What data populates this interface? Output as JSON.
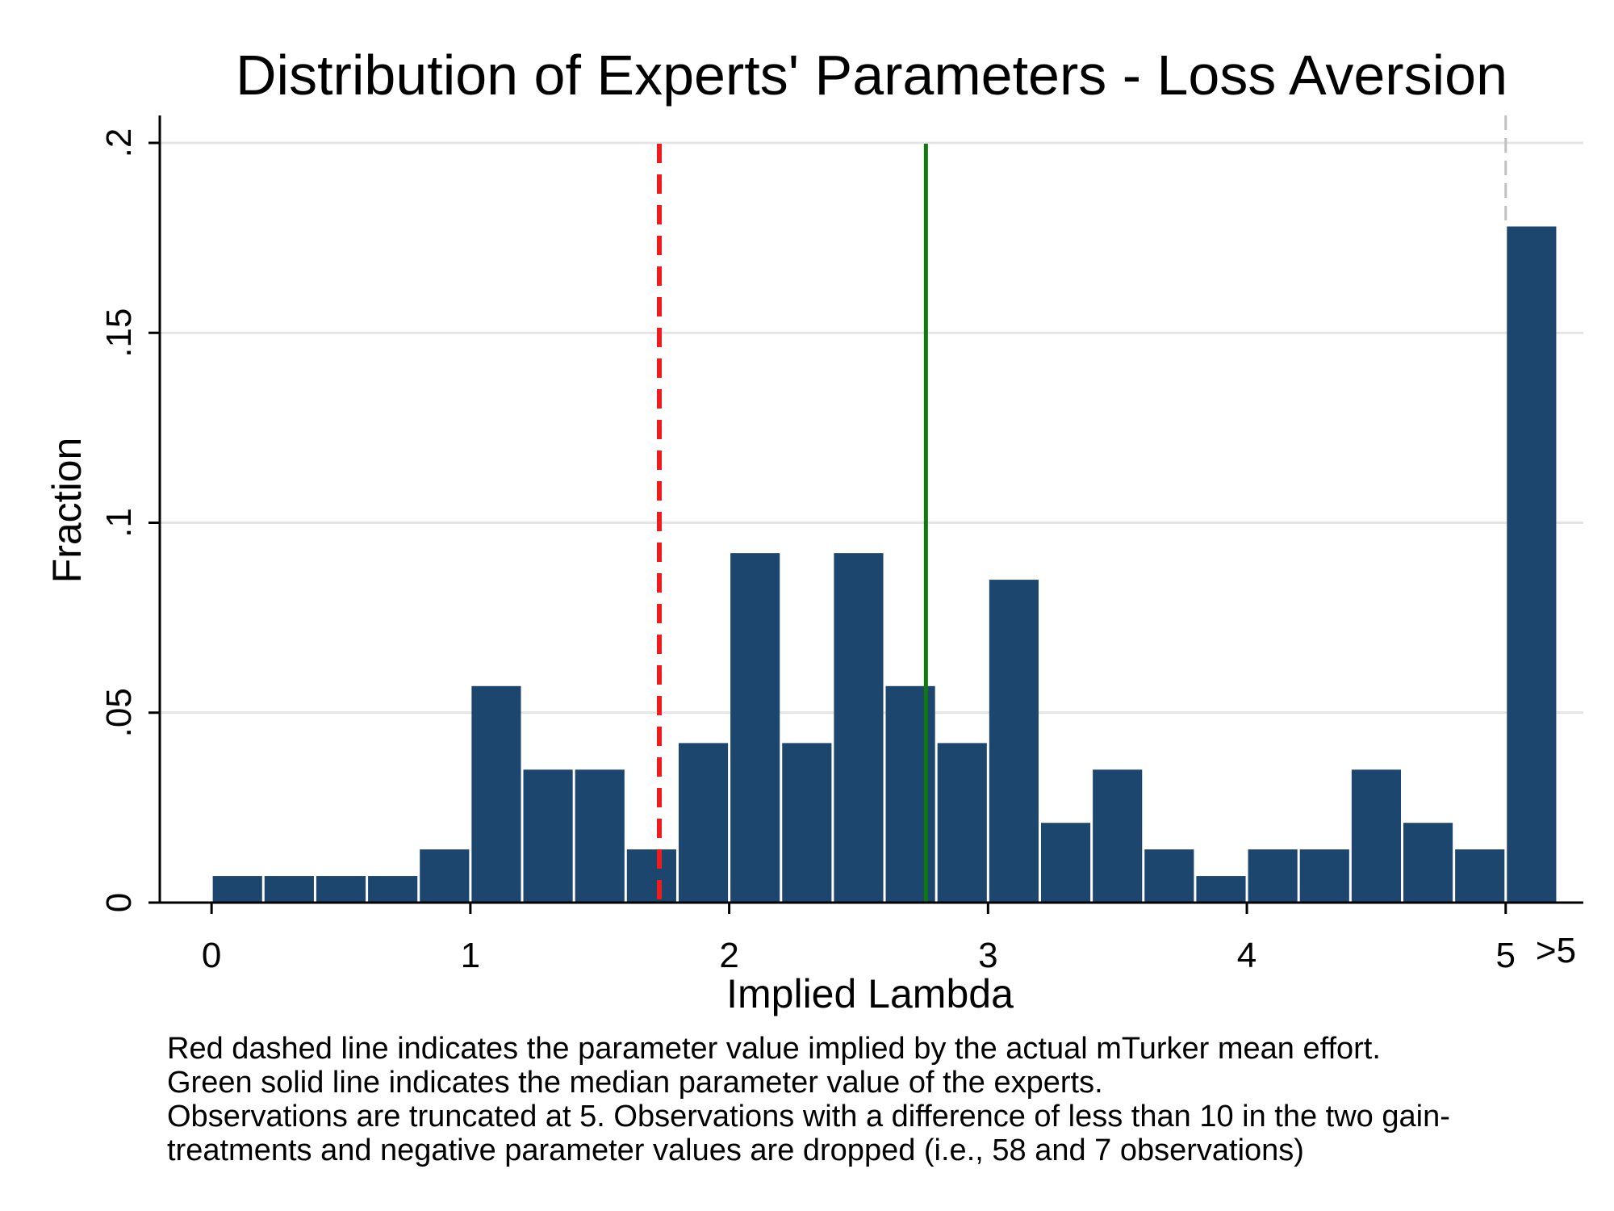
{
  "chart_data": {
    "type": "bar",
    "title": "Distribution of Experts' Parameters - Loss Aversion",
    "xlabel": "Implied Lambda",
    "ylabel": "Fraction",
    "xlim": [
      -0.2,
      5.3
    ],
    "ylim": [
      0,
      0.2
    ],
    "x_ticks": [
      {
        "value": 0,
        "label": "0"
      },
      {
        "value": 1,
        "label": "1"
      },
      {
        "value": 2,
        "label": "2"
      },
      {
        "value": 3,
        "label": "3"
      },
      {
        "value": 4,
        "label": "4"
      },
      {
        "value": 5,
        "label": "5"
      }
    ],
    "overflow_label": ">5",
    "y_ticks": [
      {
        "value": 0,
        "label": "0"
      },
      {
        "value": 0.05,
        "label": ".05"
      },
      {
        "value": 0.1,
        "label": ".1"
      },
      {
        "value": 0.15,
        "label": ".15"
      },
      {
        "value": 0.2,
        "label": ".2"
      }
    ],
    "grid": true,
    "bin_width": 0.2,
    "bins": [
      {
        "x0": 0.0,
        "value": 0.007
      },
      {
        "x0": 0.2,
        "value": 0.007
      },
      {
        "x0": 0.4,
        "value": 0.007
      },
      {
        "x0": 0.6,
        "value": 0.007
      },
      {
        "x0": 0.8,
        "value": 0.014
      },
      {
        "x0": 1.0,
        "value": 0.057
      },
      {
        "x0": 1.2,
        "value": 0.035
      },
      {
        "x0": 1.4,
        "value": 0.035
      },
      {
        "x0": 1.6,
        "value": 0.014
      },
      {
        "x0": 1.8,
        "value": 0.042
      },
      {
        "x0": 2.0,
        "value": 0.092
      },
      {
        "x0": 2.2,
        "value": 0.042
      },
      {
        "x0": 2.4,
        "value": 0.092
      },
      {
        "x0": 2.6,
        "value": 0.057
      },
      {
        "x0": 2.8,
        "value": 0.042
      },
      {
        "x0": 3.0,
        "value": 0.085
      },
      {
        "x0": 3.2,
        "value": 0.021
      },
      {
        "x0": 3.4,
        "value": 0.035
      },
      {
        "x0": 3.6,
        "value": 0.014
      },
      {
        "x0": 3.8,
        "value": 0.007
      },
      {
        "x0": 4.0,
        "value": 0.014
      },
      {
        "x0": 4.2,
        "value": 0.014
      },
      {
        "x0": 4.4,
        "value": 0.035
      },
      {
        "x0": 4.6,
        "value": 0.021
      },
      {
        "x0": 4.8,
        "value": 0.014
      },
      {
        "x0": 5.0,
        "value": 0.178
      }
    ],
    "reference_lines": [
      {
        "x": 1.73,
        "style": "dashed",
        "color": "#ee1c1c"
      },
      {
        "x": 2.76,
        "style": "solid",
        "color": "#117711"
      },
      {
        "x": 5.0,
        "style": "dashed",
        "color": "#c0c0c0"
      }
    ],
    "bar_color": "#1c466e",
    "notes": [
      "Red dashed line indicates the parameter value implied by the actual mTurker mean effort.",
      "Green solid line indicates the median parameter value of the experts.",
      "Observations are truncated at 5. Observations with a difference of less than 10 in the two gain-",
      "treatments and negative parameter values are dropped (i.e., 58 and 7 observations)"
    ]
  }
}
